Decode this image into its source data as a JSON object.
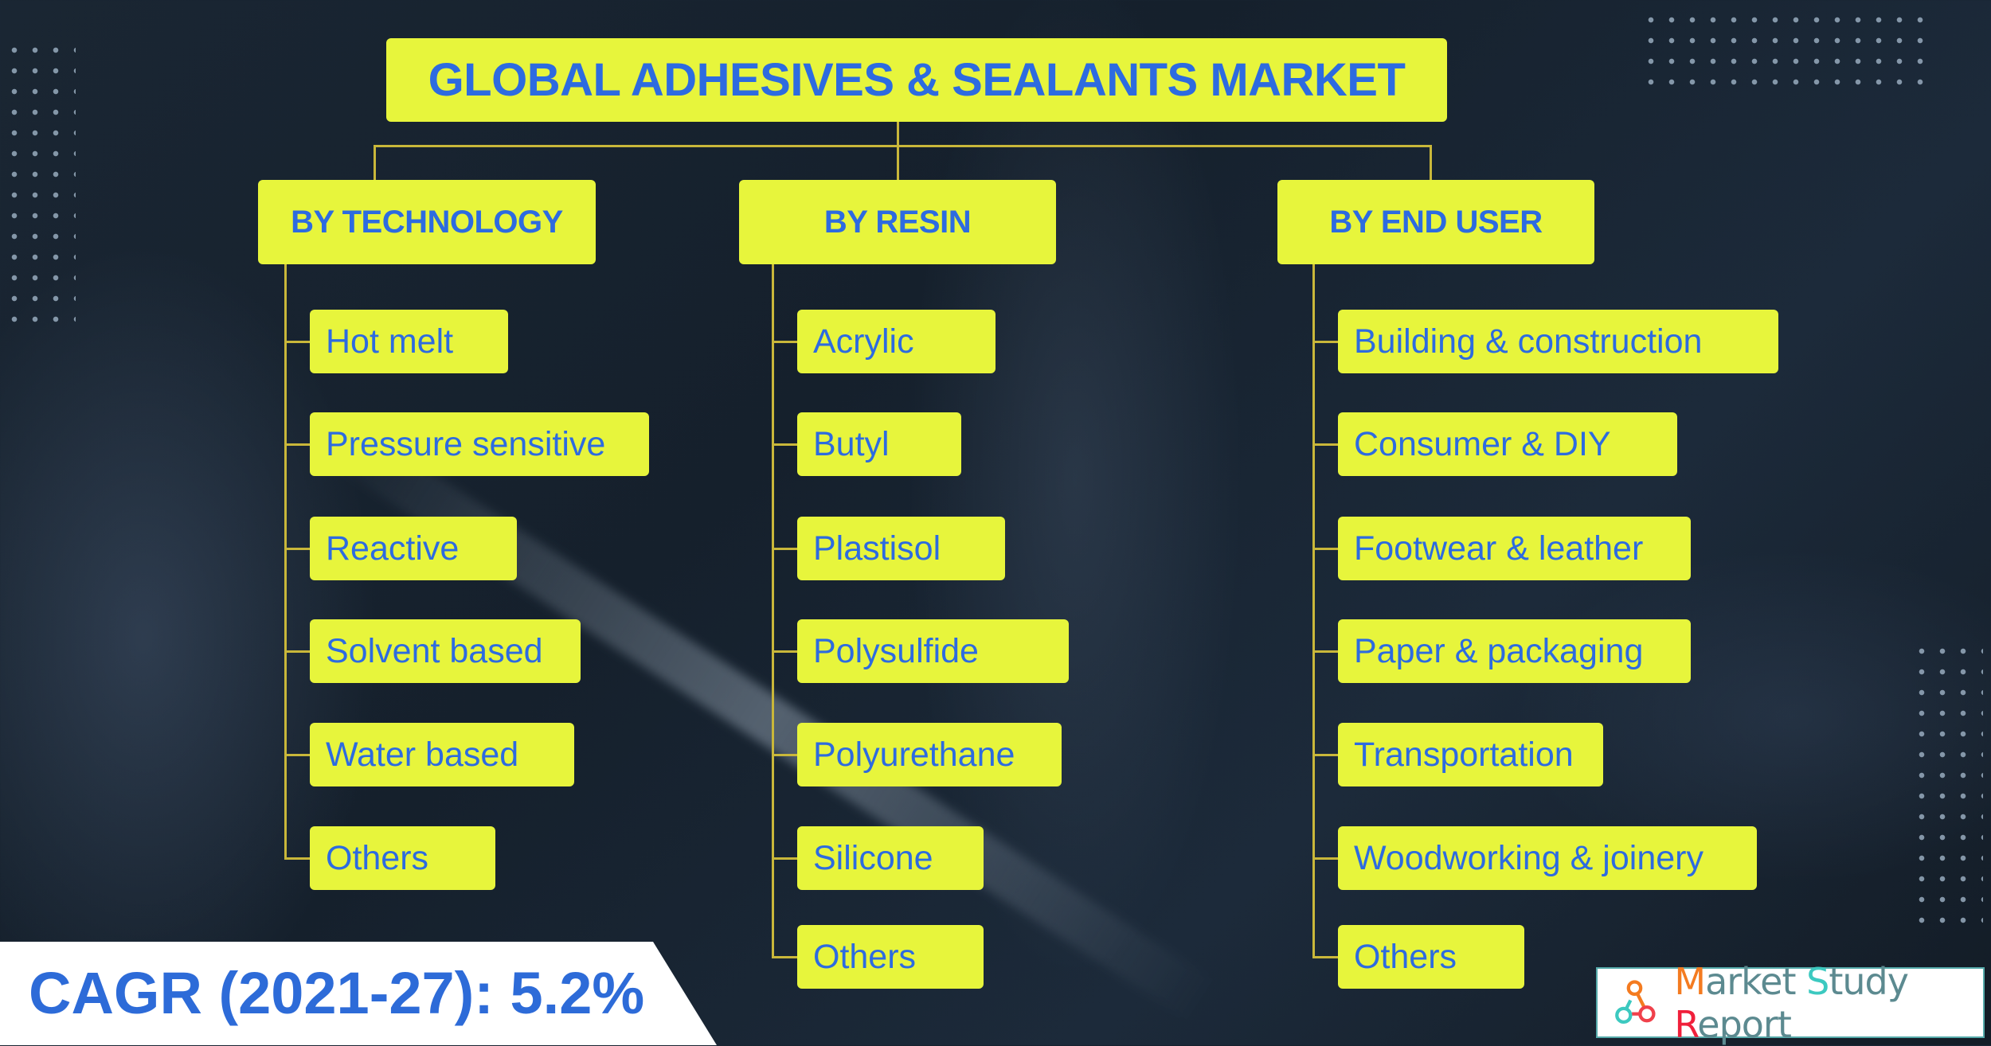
{
  "title": "GLOBAL ADHESIVES & SEALANTS MARKET",
  "colors": {
    "box": "#e7f53c",
    "text": "#2d6be0",
    "background": "#15202c",
    "connector": "#c9b73a"
  },
  "segments": [
    {
      "label": "BY TECHNOLOGY",
      "items": [
        "Hot melt",
        "Pressure sensitive",
        "Reactive",
        "Solvent based",
        "Water based",
        "Others"
      ]
    },
    {
      "label": "BY RESIN",
      "items": [
        "Acrylic",
        "Butyl",
        "Plastisol",
        "Polysulfide",
        "Polyurethane",
        "Silicone",
        "Others"
      ]
    },
    {
      "label": "BY END USER",
      "items": [
        "Building & construction",
        "Consumer & DIY",
        "Footwear & leather",
        "Paper & packaging",
        "Transportation",
        "Woodworking & joinery",
        "Others"
      ]
    }
  ],
  "cagr": "CAGR (2021-27): 5.2%",
  "logo": {
    "part1_initial": "M",
    "part1_rest": "arket ",
    "part2_initial": "S",
    "part2_rest": "tudy ",
    "part3_initial": "R",
    "part3_rest": "eport"
  }
}
